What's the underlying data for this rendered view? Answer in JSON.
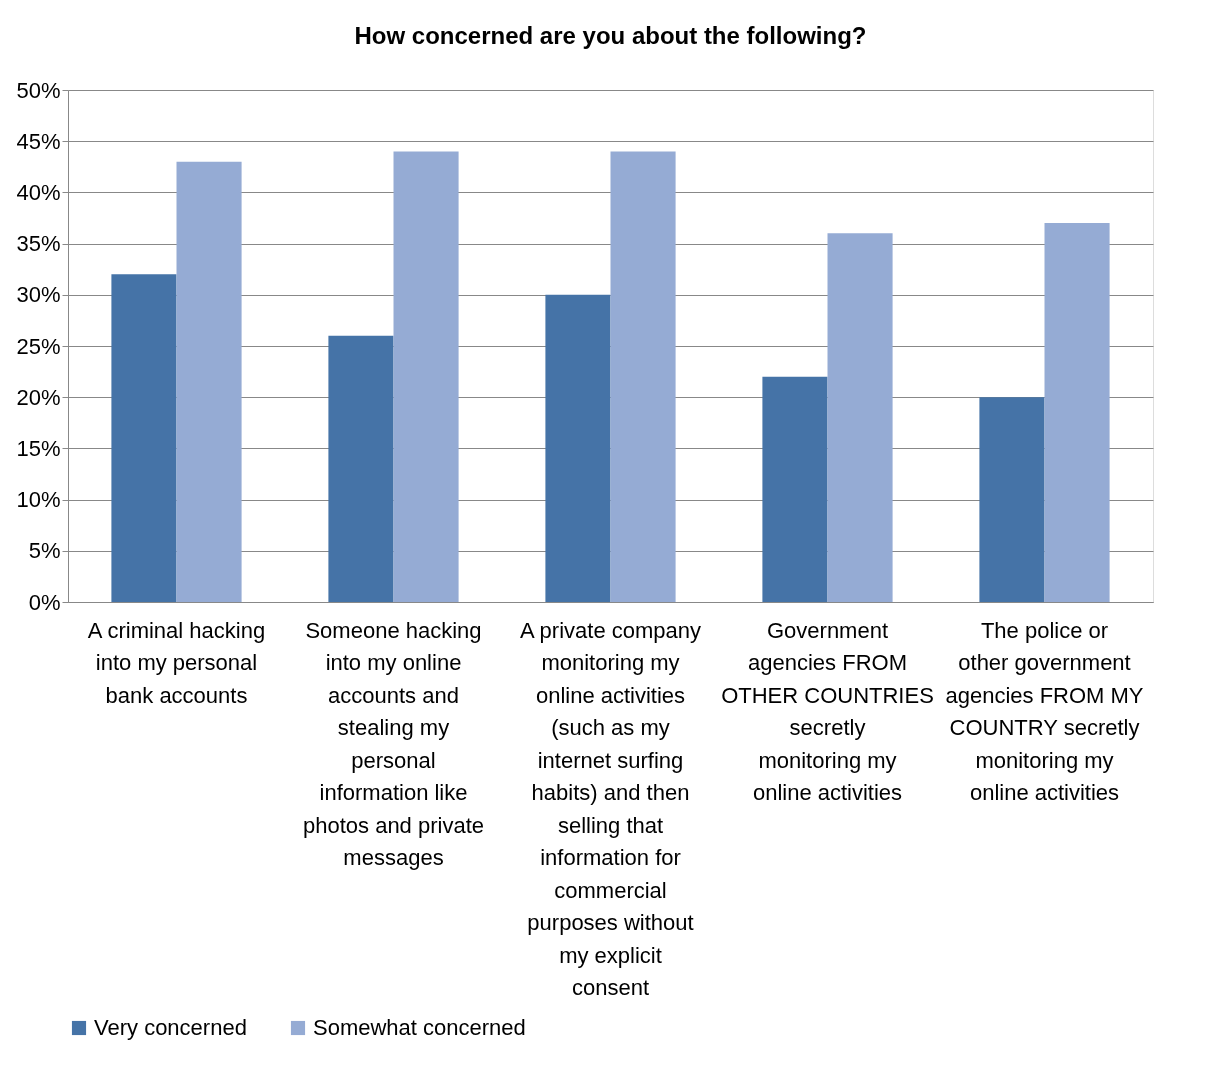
{
  "chart_data": {
    "type": "bar",
    "title": "How concerned are you about the following?",
    "categories": [
      "A criminal hacking into my personal bank accounts",
      "Someone hacking into my online accounts and stealing my personal information like photos and private messages",
      "A private company monitoring my online activities (such as my internet surfing habits) and then selling that information for commercial purposes without my explicit consent",
      "Government agencies FROM OTHER COUNTRIES secretly monitoring my online activities",
      "The police or other government agencies FROM MY COUNTRY secretly monitoring my online activities"
    ],
    "series": [
      {
        "name": "Very concerned",
        "color": "#4573a7",
        "values": [
          32,
          26,
          30,
          22,
          20
        ]
      },
      {
        "name": "Somewhat concerned",
        "color": "#95abd4",
        "values": [
          43,
          44,
          44,
          36,
          37
        ]
      }
    ],
    "ylim": [
      0,
      50
    ],
    "yticks": [
      {
        "value": 0,
        "label": "0%"
      },
      {
        "value": 5,
        "label": "5%"
      },
      {
        "value": 10,
        "label": "10%"
      },
      {
        "value": 15,
        "label": "15%"
      },
      {
        "value": 20,
        "label": "20%"
      },
      {
        "value": 25,
        "label": "25%"
      },
      {
        "value": 30,
        "label": "30%"
      },
      {
        "value": 35,
        "label": "35%"
      },
      {
        "value": 40,
        "label": "40%"
      },
      {
        "value": 45,
        "label": "45%"
      },
      {
        "value": 50,
        "label": "50%"
      }
    ],
    "grid": "y",
    "legend": "bottom"
  }
}
